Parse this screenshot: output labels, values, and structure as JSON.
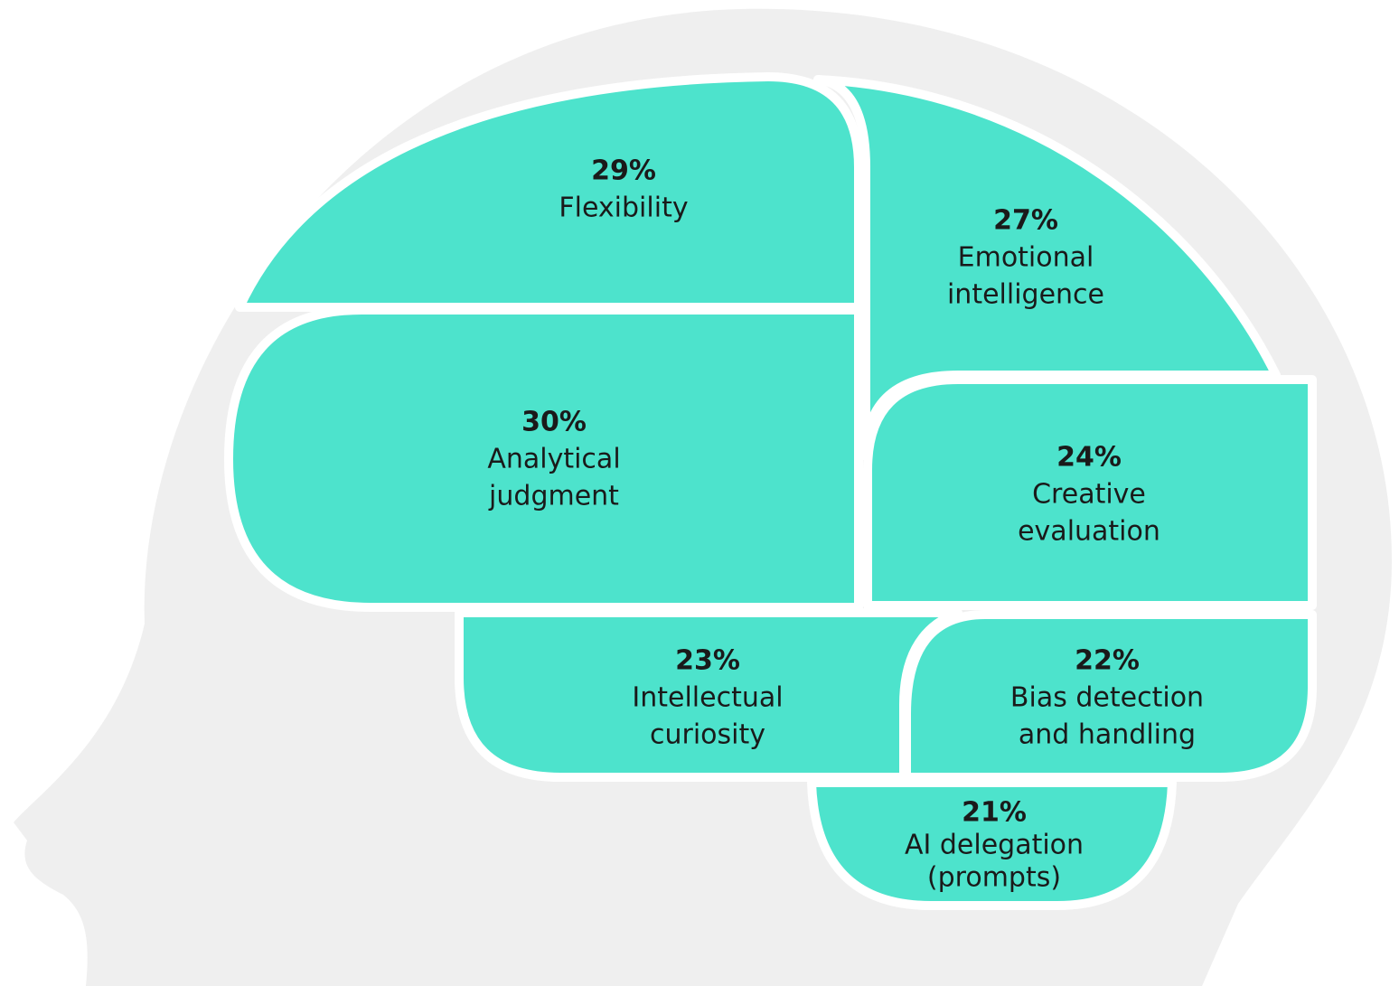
{
  "regions": [
    {
      "value_label": "29%",
      "lines": [
        "Flexibility"
      ]
    },
    {
      "value_label": "27%",
      "lines": [
        "Emotional",
        "intelligence"
      ]
    },
    {
      "value_label": "30%",
      "lines": [
        "Analytical",
        "judgment"
      ]
    },
    {
      "value_label": "24%",
      "lines": [
        "Creative",
        "evaluation"
      ]
    },
    {
      "value_label": "23%",
      "lines": [
        "Intellectual",
        "curiosity"
      ]
    },
    {
      "value_label": "22%",
      "lines": [
        "Bias detection",
        "and handling"
      ]
    },
    {
      "value_label": "21%",
      "lines": [
        "AI delegation",
        "(prompts)"
      ]
    }
  ]
}
